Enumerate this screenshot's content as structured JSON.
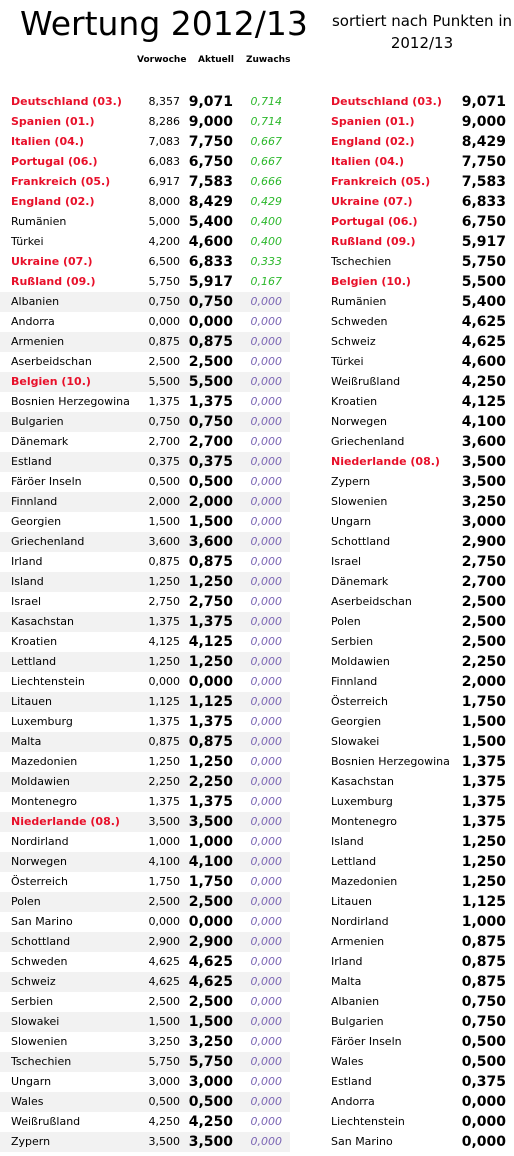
{
  "header": {
    "title": "Wertung 2012/13",
    "subtitle_line1": "sortiert nach Punkten in",
    "subtitle_line2": "2012/13",
    "col_vorwoche": "Vorwoche",
    "col_aktuell": "Aktuell",
    "col_zuwachs": "Zuwachs"
  },
  "colors": {
    "highlight": "#e8102a",
    "increase": "#2db82d",
    "zero": "#7a64b4",
    "shade": "#f2f2f2"
  },
  "left_rows": [
    {
      "name": "Deutschland (03.)",
      "vor": "8,357",
      "akt": "9,071",
      "zu": "0,714",
      "hl": true
    },
    {
      "name": "Spanien (01.)",
      "vor": "8,286",
      "akt": "9,000",
      "zu": "0,714",
      "hl": true
    },
    {
      "name": "Italien (04.)",
      "vor": "7,083",
      "akt": "7,750",
      "zu": "0,667",
      "hl": true
    },
    {
      "name": "Portugal (06.)",
      "vor": "6,083",
      "akt": "6,750",
      "zu": "0,667",
      "hl": true
    },
    {
      "name": "Frankreich (05.)",
      "vor": "6,917",
      "akt": "7,583",
      "zu": "0,666",
      "hl": true
    },
    {
      "name": "England (02.)",
      "vor": "8,000",
      "akt": "8,429",
      "zu": "0,429",
      "hl": true
    },
    {
      "name": "Rumänien",
      "vor": "5,000",
      "akt": "5,400",
      "zu": "0,400",
      "hl": false
    },
    {
      "name": "Türkei",
      "vor": "4,200",
      "akt": "4,600",
      "zu": "0,400",
      "hl": false
    },
    {
      "name": "Ukraine (07.)",
      "vor": "6,500",
      "akt": "6,833",
      "zu": "0,333",
      "hl": true
    },
    {
      "name": "Rußland (09.)",
      "vor": "5,750",
      "akt": "5,917",
      "zu": "0,167",
      "hl": true
    },
    {
      "name": "Albanien",
      "vor": "0,750",
      "akt": "0,750",
      "zu": "0,000",
      "hl": false
    },
    {
      "name": "Andorra",
      "vor": "0,000",
      "akt": "0,000",
      "zu": "0,000",
      "hl": false
    },
    {
      "name": "Armenien",
      "vor": "0,875",
      "akt": "0,875",
      "zu": "0,000",
      "hl": false
    },
    {
      "name": "Aserbeidschan",
      "vor": "2,500",
      "akt": "2,500",
      "zu": "0,000",
      "hl": false
    },
    {
      "name": "Belgien (10.)",
      "vor": "5,500",
      "akt": "5,500",
      "zu": "0,000",
      "hl": true
    },
    {
      "name": "Bosnien Herzegowina",
      "vor": "1,375",
      "akt": "1,375",
      "zu": "0,000",
      "hl": false
    },
    {
      "name": "Bulgarien",
      "vor": "0,750",
      "akt": "0,750",
      "zu": "0,000",
      "hl": false
    },
    {
      "name": "Dänemark",
      "vor": "2,700",
      "akt": "2,700",
      "zu": "0,000",
      "hl": false
    },
    {
      "name": "Estland",
      "vor": "0,375",
      "akt": "0,375",
      "zu": "0,000",
      "hl": false
    },
    {
      "name": "Färöer Inseln",
      "vor": "0,500",
      "akt": "0,500",
      "zu": "0,000",
      "hl": false
    },
    {
      "name": "Finnland",
      "vor": "2,000",
      "akt": "2,000",
      "zu": "0,000",
      "hl": false
    },
    {
      "name": "Georgien",
      "vor": "1,500",
      "akt": "1,500",
      "zu": "0,000",
      "hl": false
    },
    {
      "name": "Griechenland",
      "vor": "3,600",
      "akt": "3,600",
      "zu": "0,000",
      "hl": false
    },
    {
      "name": "Irland",
      "vor": "0,875",
      "akt": "0,875",
      "zu": "0,000",
      "hl": false
    },
    {
      "name": "Island",
      "vor": "1,250",
      "akt": "1,250",
      "zu": "0,000",
      "hl": false
    },
    {
      "name": "Israel",
      "vor": "2,750",
      "akt": "2,750",
      "zu": "0,000",
      "hl": false
    },
    {
      "name": "Kasachstan",
      "vor": "1,375",
      "akt": "1,375",
      "zu": "0,000",
      "hl": false
    },
    {
      "name": "Kroatien",
      "vor": "4,125",
      "akt": "4,125",
      "zu": "0,000",
      "hl": false
    },
    {
      "name": "Lettland",
      "vor": "1,250",
      "akt": "1,250",
      "zu": "0,000",
      "hl": false
    },
    {
      "name": "Liechtenstein",
      "vor": "0,000",
      "akt": "0,000",
      "zu": "0,000",
      "hl": false
    },
    {
      "name": "Litauen",
      "vor": "1,125",
      "akt": "1,125",
      "zu": "0,000",
      "hl": false
    },
    {
      "name": "Luxemburg",
      "vor": "1,375",
      "akt": "1,375",
      "zu": "0,000",
      "hl": false
    },
    {
      "name": "Malta",
      "vor": "0,875",
      "akt": "0,875",
      "zu": "0,000",
      "hl": false
    },
    {
      "name": "Mazedonien",
      "vor": "1,250",
      "akt": "1,250",
      "zu": "0,000",
      "hl": false
    },
    {
      "name": "Moldawien",
      "vor": "2,250",
      "akt": "2,250",
      "zu": "0,000",
      "hl": false
    },
    {
      "name": "Montenegro",
      "vor": "1,375",
      "akt": "1,375",
      "zu": "0,000",
      "hl": false
    },
    {
      "name": "Niederlande (08.)",
      "vor": "3,500",
      "akt": "3,500",
      "zu": "0,000",
      "hl": true
    },
    {
      "name": "Nordirland",
      "vor": "1,000",
      "akt": "1,000",
      "zu": "0,000",
      "hl": false
    },
    {
      "name": "Norwegen",
      "vor": "4,100",
      "akt": "4,100",
      "zu": "0,000",
      "hl": false
    },
    {
      "name": "Österreich",
      "vor": "1,750",
      "akt": "1,750",
      "zu": "0,000",
      "hl": false
    },
    {
      "name": "Polen",
      "vor": "2,500",
      "akt": "2,500",
      "zu": "0,000",
      "hl": false
    },
    {
      "name": "San Marino",
      "vor": "0,000",
      "akt": "0,000",
      "zu": "0,000",
      "hl": false
    },
    {
      "name": "Schottland",
      "vor": "2,900",
      "akt": "2,900",
      "zu": "0,000",
      "hl": false
    },
    {
      "name": "Schweden",
      "vor": "4,625",
      "akt": "4,625",
      "zu": "0,000",
      "hl": false
    },
    {
      "name": "Schweiz",
      "vor": "4,625",
      "akt": "4,625",
      "zu": "0,000",
      "hl": false
    },
    {
      "name": "Serbien",
      "vor": "2,500",
      "akt": "2,500",
      "zu": "0,000",
      "hl": false
    },
    {
      "name": "Slowakei",
      "vor": "1,500",
      "akt": "1,500",
      "zu": "0,000",
      "hl": false
    },
    {
      "name": "Slowenien",
      "vor": "3,250",
      "akt": "3,250",
      "zu": "0,000",
      "hl": false
    },
    {
      "name": "Tschechien",
      "vor": "5,750",
      "akt": "5,750",
      "zu": "0,000",
      "hl": false
    },
    {
      "name": "Ungarn",
      "vor": "3,000",
      "akt": "3,000",
      "zu": "0,000",
      "hl": false
    },
    {
      "name": "Wales",
      "vor": "0,500",
      "akt": "0,500",
      "zu": "0,000",
      "hl": false
    },
    {
      "name": "Weißrußland",
      "vor": "4,250",
      "akt": "4,250",
      "zu": "0,000",
      "hl": false
    },
    {
      "name": "Zypern",
      "vor": "3,500",
      "akt": "3,500",
      "zu": "0,000",
      "hl": false
    }
  ],
  "right_rows": [
    {
      "name": "Deutschland (03.)",
      "val": "9,071",
      "hl": true
    },
    {
      "name": "Spanien (01.)",
      "val": "9,000",
      "hl": true
    },
    {
      "name": "England (02.)",
      "val": "8,429",
      "hl": true
    },
    {
      "name": "Italien (04.)",
      "val": "7,750",
      "hl": true
    },
    {
      "name": "Frankreich (05.)",
      "val": "7,583",
      "hl": true
    },
    {
      "name": "Ukraine (07.)",
      "val": "6,833",
      "hl": true
    },
    {
      "name": "Portugal (06.)",
      "val": "6,750",
      "hl": true
    },
    {
      "name": "Rußland (09.)",
      "val": "5,917",
      "hl": true
    },
    {
      "name": "Tschechien",
      "val": "5,750",
      "hl": false
    },
    {
      "name": "Belgien (10.)",
      "val": "5,500",
      "hl": true
    },
    {
      "name": "Rumänien",
      "val": "5,400",
      "hl": false
    },
    {
      "name": "Schweden",
      "val": "4,625",
      "hl": false
    },
    {
      "name": "Schweiz",
      "val": "4,625",
      "hl": false
    },
    {
      "name": "Türkei",
      "val": "4,600",
      "hl": false
    },
    {
      "name": "Weißrußland",
      "val": "4,250",
      "hl": false
    },
    {
      "name": "Kroatien",
      "val": "4,125",
      "hl": false
    },
    {
      "name": "Norwegen",
      "val": "4,100",
      "hl": false
    },
    {
      "name": "Griechenland",
      "val": "3,600",
      "hl": false
    },
    {
      "name": "Niederlande (08.)",
      "val": "3,500",
      "hl": true
    },
    {
      "name": "Zypern",
      "val": "3,500",
      "hl": false
    },
    {
      "name": "Slowenien",
      "val": "3,250",
      "hl": false
    },
    {
      "name": "Ungarn",
      "val": "3,000",
      "hl": false
    },
    {
      "name": "Schottland",
      "val": "2,900",
      "hl": false
    },
    {
      "name": "Israel",
      "val": "2,750",
      "hl": false
    },
    {
      "name": "Dänemark",
      "val": "2,700",
      "hl": false
    },
    {
      "name": "Aserbeidschan",
      "val": "2,500",
      "hl": false
    },
    {
      "name": "Polen",
      "val": "2,500",
      "hl": false
    },
    {
      "name": "Serbien",
      "val": "2,500",
      "hl": false
    },
    {
      "name": "Moldawien",
      "val": "2,250",
      "hl": false
    },
    {
      "name": "Finnland",
      "val": "2,000",
      "hl": false
    },
    {
      "name": "Österreich",
      "val": "1,750",
      "hl": false
    },
    {
      "name": "Georgien",
      "val": "1,500",
      "hl": false
    },
    {
      "name": "Slowakei",
      "val": "1,500",
      "hl": false
    },
    {
      "name": "Bosnien Herzegowina",
      "val": "1,375",
      "hl": false
    },
    {
      "name": "Kasachstan",
      "val": "1,375",
      "hl": false
    },
    {
      "name": "Luxemburg",
      "val": "1,375",
      "hl": false
    },
    {
      "name": "Montenegro",
      "val": "1,375",
      "hl": false
    },
    {
      "name": "Island",
      "val": "1,250",
      "hl": false
    },
    {
      "name": "Lettland",
      "val": "1,250",
      "hl": false
    },
    {
      "name": "Mazedonien",
      "val": "1,250",
      "hl": false
    },
    {
      "name": "Litauen",
      "val": "1,125",
      "hl": false
    },
    {
      "name": "Nordirland",
      "val": "1,000",
      "hl": false
    },
    {
      "name": "Armenien",
      "val": "0,875",
      "hl": false
    },
    {
      "name": "Irland",
      "val": "0,875",
      "hl": false
    },
    {
      "name": "Malta",
      "val": "0,875",
      "hl": false
    },
    {
      "name": "Albanien",
      "val": "0,750",
      "hl": false
    },
    {
      "name": "Bulgarien",
      "val": "0,750",
      "hl": false
    },
    {
      "name": "Färöer Inseln",
      "val": "0,500",
      "hl": false
    },
    {
      "name": "Wales",
      "val": "0,500",
      "hl": false
    },
    {
      "name": "Estland",
      "val": "0,375",
      "hl": false
    },
    {
      "name": "Andorra",
      "val": "0,000",
      "hl": false
    },
    {
      "name": "Liechtenstein",
      "val": "0,000",
      "hl": false
    },
    {
      "name": "San Marino",
      "val": "0,000",
      "hl": false
    }
  ]
}
